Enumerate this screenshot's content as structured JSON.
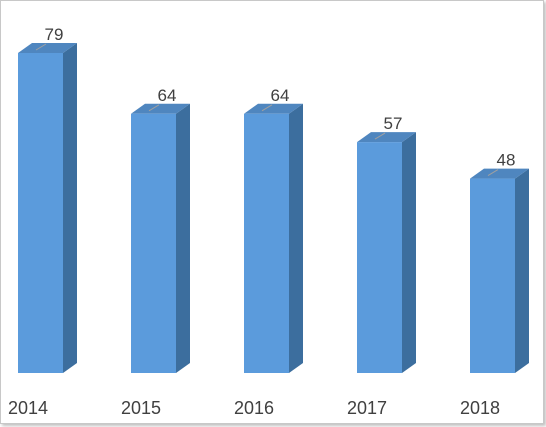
{
  "chart_data": {
    "type": "bar",
    "categories": [
      "2014",
      "2015",
      "2016",
      "2017",
      "2018"
    ],
    "values": [
      79,
      64,
      64,
      57,
      48
    ],
    "ylim": [
      0,
      79
    ],
    "grid": false,
    "colors": {
      "front": "#5b9bdc",
      "side": "#3c6e9e",
      "top": "#4f86bf"
    }
  }
}
